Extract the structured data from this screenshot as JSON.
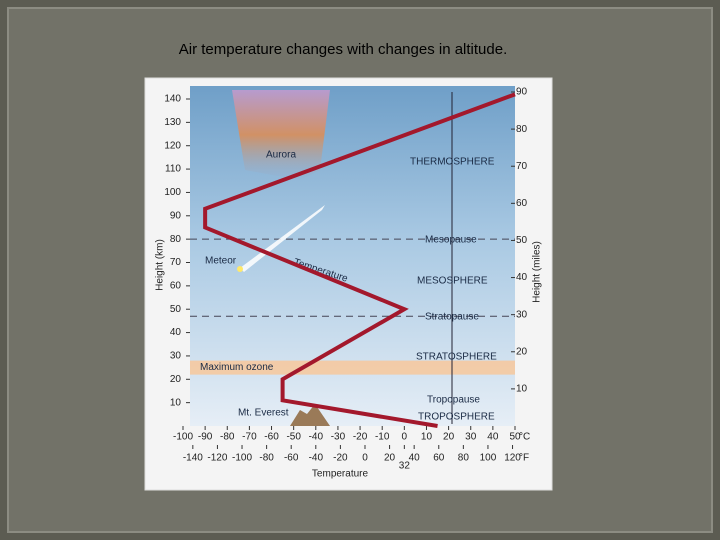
{
  "slide_title": "Air temperature changes with changes in altitude.",
  "chart_data": {
    "type": "line",
    "y_label": "Height (km)",
    "y2_label": "Height (miles)",
    "x_label": "Temperature",
    "x_unit": "°C",
    "x2_unit": "°F",
    "series": [
      {
        "name": "Temperature",
        "color": "#a3182c",
        "x": [
          15,
          -55,
          -55,
          0,
          -90,
          -90,
          50
        ],
        "values": [
          0,
          11,
          20,
          50,
          85,
          93,
          142
        ]
      }
    ],
    "xlim": [
      -100,
      50
    ],
    "xticks": [
      -100,
      -90,
      -80,
      -70,
      -60,
      -50,
      -40,
      -30,
      -20,
      -10,
      0,
      10,
      20,
      30,
      40,
      50
    ],
    "x2lim": [
      -148,
      122
    ],
    "x2ticks": [
      -140,
      -120,
      -100,
      -80,
      -60,
      -40,
      -20,
      0,
      20,
      32,
      40,
      60,
      80,
      100,
      120
    ],
    "ylim": [
      0,
      143
    ],
    "yticks": [
      10,
      20,
      30,
      40,
      50,
      60,
      70,
      80,
      90,
      100,
      110,
      120,
      130,
      140
    ],
    "y2lim": [
      0,
      90
    ],
    "y2ticks": [
      10,
      20,
      30,
      40,
      50,
      60,
      70,
      80,
      90
    ],
    "ozone_band": [
      22,
      28
    ],
    "ozone_label": "Maximum ozone",
    "boundaries": [
      80,
      47
    ],
    "layers": [
      "THERMOSPHERE",
      "Mesopause",
      "MESOSPHERE",
      "Stratopause",
      "STRATOSPHERE",
      "Tropopause",
      "TROPOSPHERE"
    ],
    "annotations": [
      "Aurora",
      "Meteor",
      "Mt. Everest"
    ]
  }
}
